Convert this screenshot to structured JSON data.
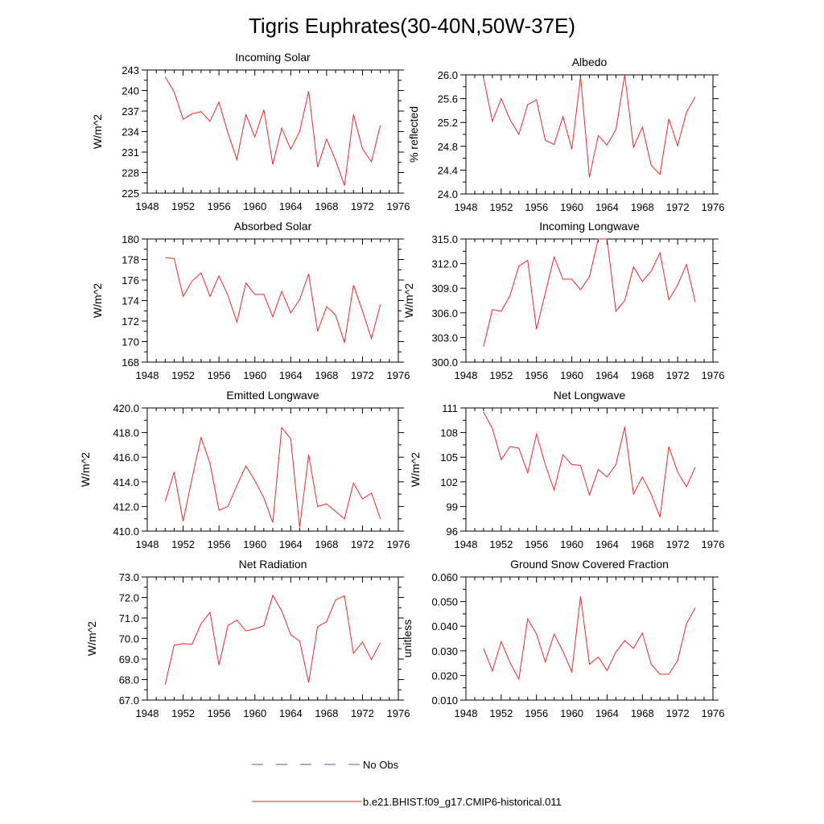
{
  "figure_title": "Tigris Euphrates(30-40N,50W-37E)",
  "legend": [
    {
      "label": "No Obs",
      "style": "dashed",
      "color": "#4a5ea8"
    },
    {
      "label": "b.e21.BHIST.f09_g17.CMIP6-historical.011",
      "style": "solid",
      "color": "#e8282a"
    }
  ],
  "chart_data": [
    {
      "type": "line",
      "title": "Incoming Solar",
      "ylabel": "W/m^2",
      "xlim": [
        1948,
        1976
      ],
      "ylim": [
        225,
        243
      ],
      "xticks": [
        "1948",
        "1952",
        "1956",
        "1960",
        "1964",
        "1968",
        "1972",
        "1976"
      ],
      "yticks": [
        "225",
        "228",
        "231",
        "234",
        "237",
        "240",
        "243"
      ],
      "series": [
        {
          "color": "#e8282a",
          "x": [
            1950,
            1951,
            1952,
            1953,
            1954,
            1955,
            1956,
            1957,
            1958,
            1959,
            1960,
            1961,
            1962,
            1963,
            1964,
            1965,
            1966,
            1967,
            1968,
            1969,
            1970,
            1971,
            1972,
            1973,
            1974
          ],
          "y": [
            242.0,
            239.8,
            235.8,
            236.6,
            236.9,
            235.5,
            238.3,
            233.8,
            229.9,
            236.5,
            233.2,
            237.2,
            229.2,
            234.5,
            231.4,
            234.0,
            239.9,
            228.8,
            232.9,
            229.8,
            226.1,
            236.5,
            231.5,
            229.6,
            234.9
          ]
        }
      ]
    },
    {
      "type": "line",
      "title": "Albedo",
      "ylabel": "% reflected",
      "xlim": [
        1948,
        1976
      ],
      "ylim": [
        24.0,
        26.0
      ],
      "xticks": [
        "1948",
        "1952",
        "1956",
        "1960",
        "1964",
        "1968",
        "1972",
        "1976"
      ],
      "yticks": [
        "24.0",
        "24.4",
        "24.8",
        "25.2",
        "25.6",
        "26.0"
      ],
      "series": [
        {
          "color": "#e8282a",
          "x": [
            1950,
            1951,
            1952,
            1953,
            1954,
            1955,
            1956,
            1957,
            1958,
            1959,
            1960,
            1961,
            1962,
            1963,
            1964,
            1965,
            1966,
            1967,
            1968,
            1969,
            1970,
            1971,
            1972,
            1973,
            1974
          ],
          "y": [
            25.95,
            25.22,
            25.6,
            25.25,
            25.0,
            25.5,
            25.58,
            24.9,
            24.83,
            25.3,
            24.75,
            25.97,
            24.28,
            24.98,
            24.82,
            25.08,
            26.0,
            24.78,
            25.12,
            24.48,
            24.33,
            25.26,
            24.81,
            25.37,
            25.63
          ]
        }
      ]
    },
    {
      "type": "line",
      "title": "Absorbed Solar",
      "ylabel": "W/m^2",
      "xlim": [
        1948,
        1976
      ],
      "ylim": [
        168,
        180
      ],
      "xticks": [
        "1948",
        "1952",
        "1956",
        "1960",
        "1964",
        "1968",
        "1972",
        "1976"
      ],
      "yticks": [
        "168",
        "170",
        "172",
        "174",
        "176",
        "178",
        "180"
      ],
      "series": [
        {
          "color": "#e8282a",
          "x": [
            1950,
            1951,
            1952,
            1953,
            1954,
            1955,
            1956,
            1957,
            1958,
            1959,
            1960,
            1961,
            1962,
            1963,
            1964,
            1965,
            1966,
            1967,
            1968,
            1969,
            1970,
            1971,
            1972,
            1973,
            1974
          ],
          "y": [
            178.2,
            178.1,
            174.4,
            175.9,
            176.7,
            174.4,
            176.4,
            174.5,
            171.9,
            175.7,
            174.6,
            174.6,
            172.4,
            174.9,
            172.8,
            174.1,
            176.6,
            171.0,
            173.4,
            172.6,
            169.9,
            175.5,
            173.0,
            170.3,
            173.6
          ]
        }
      ]
    },
    {
      "type": "line",
      "title": "Incoming Longwave",
      "ylabel": "W/m^2",
      "xlim": [
        1948,
        1976
      ],
      "ylim": [
        300.0,
        315.0
      ],
      "xticks": [
        "1948",
        "1952",
        "1956",
        "1960",
        "1964",
        "1968",
        "1972",
        "1976"
      ],
      "yticks": [
        "300.0",
        "303.0",
        "306.0",
        "309.0",
        "312.0",
        "315.0"
      ],
      "series": [
        {
          "color": "#e8282a",
          "x": [
            1950,
            1951,
            1952,
            1953,
            1954,
            1955,
            1956,
            1957,
            1958,
            1959,
            1960,
            1961,
            1962,
            1963,
            1964,
            1965,
            1966,
            1967,
            1968,
            1969,
            1970,
            1971,
            1972,
            1973,
            1974
          ],
          "y": [
            301.9,
            306.4,
            306.2,
            308.1,
            311.7,
            312.4,
            304.0,
            308.4,
            312.8,
            310.1,
            310.1,
            308.8,
            310.4,
            315.0,
            315.0,
            306.2,
            307.5,
            311.6,
            309.8,
            311.1,
            313.3,
            307.6,
            309.4,
            311.9,
            307.3
          ]
        }
      ]
    },
    {
      "type": "line",
      "title": "Emitted Longwave",
      "ylabel": "W/m^2",
      "xlim": [
        1948,
        1976
      ],
      "ylim": [
        410.0,
        420.0
      ],
      "xticks": [
        "1948",
        "1952",
        "1956",
        "1960",
        "1964",
        "1968",
        "1972",
        "1976"
      ],
      "yticks": [
        "410.0",
        "412.0",
        "414.0",
        "416.0",
        "418.0",
        "420.0"
      ],
      "series": [
        {
          "color": "#e8282a",
          "x": [
            1950,
            1951,
            1952,
            1953,
            1954,
            1955,
            1956,
            1957,
            1958,
            1959,
            1960,
            1961,
            1962,
            1963,
            1964,
            1965,
            1966,
            1967,
            1968,
            1969,
            1970,
            1971,
            1972,
            1973,
            1974
          ],
          "y": [
            412.4,
            414.8,
            410.8,
            414.3,
            417.6,
            415.5,
            411.7,
            412.0,
            413.7,
            415.3,
            414.1,
            412.7,
            410.7,
            418.4,
            417.5,
            410.3,
            416.2,
            412.0,
            412.2,
            411.6,
            411.0,
            413.9,
            412.6,
            413.1,
            411.0
          ]
        }
      ]
    },
    {
      "type": "line",
      "title": "Net Longwave",
      "ylabel": "W/m^2",
      "xlim": [
        1948,
        1976
      ],
      "ylim": [
        96,
        111
      ],
      "xticks": [
        "1948",
        "1952",
        "1956",
        "1960",
        "1964",
        "1968",
        "1972",
        "1976"
      ],
      "yticks": [
        "96",
        "99",
        "102",
        "105",
        "108",
        "111"
      ],
      "series": [
        {
          "color": "#e8282a",
          "x": [
            1950,
            1951,
            1952,
            1953,
            1954,
            1955,
            1956,
            1957,
            1958,
            1959,
            1960,
            1961,
            1962,
            1963,
            1964,
            1965,
            1966,
            1967,
            1968,
            1969,
            1970,
            1971,
            1972,
            1973,
            1974
          ],
          "y": [
            110.5,
            108.5,
            104.7,
            106.3,
            106.1,
            103.1,
            107.8,
            104.1,
            101.0,
            105.3,
            104.1,
            104.0,
            100.4,
            103.5,
            102.6,
            104.1,
            108.7,
            100.5,
            102.6,
            100.5,
            97.7,
            106.3,
            103.2,
            101.4,
            103.8
          ]
        }
      ]
    },
    {
      "type": "line",
      "title": "Net Radiation",
      "ylabel": "W/m^2",
      "xlim": [
        1948,
        1976
      ],
      "ylim": [
        67.0,
        73.0
      ],
      "xticks": [
        "1948",
        "1952",
        "1956",
        "1960",
        "1964",
        "1968",
        "1972",
        "1976"
      ],
      "yticks": [
        "67.0",
        "68.0",
        "69.0",
        "70.0",
        "71.0",
        "72.0",
        "73.0"
      ],
      "series": [
        {
          "color": "#e8282a",
          "x": [
            1950,
            1951,
            1952,
            1953,
            1954,
            1955,
            1956,
            1957,
            1958,
            1959,
            1960,
            1961,
            1962,
            1963,
            1964,
            1965,
            1966,
            1967,
            1968,
            1969,
            1970,
            1971,
            1972,
            1973,
            1974
          ],
          "y": [
            67.75,
            69.68,
            69.75,
            69.72,
            70.72,
            71.28,
            68.7,
            70.63,
            70.9,
            70.37,
            70.47,
            70.62,
            72.1,
            71.35,
            70.18,
            69.88,
            67.85,
            70.58,
            70.82,
            71.88,
            72.08,
            69.28,
            69.83,
            68.97,
            69.8
          ]
        }
      ]
    },
    {
      "type": "line",
      "title": "Ground Snow Covered Fraction",
      "ylabel": "unitless",
      "xlim": [
        1948,
        1976
      ],
      "ylim": [
        0.01,
        0.06
      ],
      "xticks": [
        "1948",
        "1952",
        "1956",
        "1960",
        "1964",
        "1968",
        "1972",
        "1976"
      ],
      "yticks": [
        "0.010",
        "0.020",
        "0.030",
        "0.040",
        "0.050",
        "0.060"
      ],
      "series": [
        {
          "color": "#e8282a",
          "x": [
            1950,
            1951,
            1952,
            1953,
            1954,
            1955,
            1956,
            1957,
            1958,
            1959,
            1960,
            1961,
            1962,
            1963,
            1964,
            1965,
            1966,
            1967,
            1968,
            1969,
            1970,
            1971,
            1972,
            1973,
            1974
          ],
          "y": [
            0.031,
            0.0218,
            0.0338,
            0.0252,
            0.0185,
            0.043,
            0.0368,
            0.0255,
            0.0368,
            0.0298,
            0.0215,
            0.0522,
            0.0245,
            0.0275,
            0.022,
            0.0295,
            0.0342,
            0.031,
            0.0372,
            0.0245,
            0.0205,
            0.0205,
            0.026,
            0.041,
            0.0475
          ]
        }
      ]
    }
  ]
}
